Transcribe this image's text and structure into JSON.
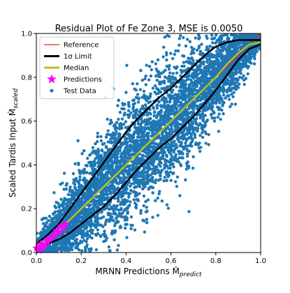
{
  "chart_data": {
    "type": "scatter",
    "title": "Residual Plot of Fe Zone 3, MSE is 0.0050",
    "xlabel": "MRNN Predictions M̂",
    "xlabel_sub": "predict",
    "ylabel": "Scaled Tardis Input M̂",
    "ylabel_sub": "scaled",
    "xlim": [
      0.0,
      1.0
    ],
    "ylim": [
      0.0,
      1.0
    ],
    "xticks": [
      "0.0",
      "0.2",
      "0.4",
      "0.6",
      "0.8",
      "1.0"
    ],
    "yticks": [
      "0.0",
      "0.2",
      "0.4",
      "0.6",
      "0.8",
      "1.0"
    ],
    "grid": false,
    "legend_position": "top-left",
    "legend": [
      {
        "label": "Reference",
        "marker": "line",
        "color": "#d62728"
      },
      {
        "label": "1σ Limit",
        "marker": "thick-line",
        "color": "#000000"
      },
      {
        "label": "Median",
        "marker": "thick-line",
        "color": "#bcbd22"
      },
      {
        "label": "Predictions",
        "marker": "star",
        "color": "#ff00ff"
      },
      {
        "label": "Test Data",
        "marker": "dot",
        "color": "#1f77b4"
      }
    ],
    "colors": {
      "reference": "#d62728",
      "limit": "#000000",
      "median": "#bcbd22",
      "predictions": "#ff00ff",
      "test_data": "#1f77b4"
    },
    "series": [
      {
        "name": "Reference",
        "kind": "line",
        "x": [
          0.0,
          1.0
        ],
        "y": [
          0.0,
          1.0
        ]
      },
      {
        "name": "Median",
        "kind": "line",
        "x": [
          0.0,
          0.05,
          0.1,
          0.15,
          0.2,
          0.25,
          0.3,
          0.35,
          0.4,
          0.45,
          0.5,
          0.55,
          0.6,
          0.65,
          0.7,
          0.75,
          0.8,
          0.85,
          0.9,
          0.95,
          1.0
        ],
        "y": [
          0.03,
          0.06,
          0.1,
          0.15,
          0.2,
          0.25,
          0.3,
          0.35,
          0.4,
          0.45,
          0.5,
          0.55,
          0.6,
          0.65,
          0.7,
          0.75,
          0.8,
          0.86,
          0.91,
          0.95,
          0.96
        ]
      },
      {
        "name": "1σ Limit (upper)",
        "kind": "line",
        "x": [
          0.0,
          0.05,
          0.1,
          0.15,
          0.2,
          0.25,
          0.3,
          0.35,
          0.4,
          0.45,
          0.5,
          0.55,
          0.6,
          0.65,
          0.7,
          0.75,
          0.8,
          0.85,
          0.9,
          0.95,
          1.0
        ],
        "y": [
          0.04,
          0.08,
          0.13,
          0.2,
          0.27,
          0.34,
          0.41,
          0.48,
          0.55,
          0.61,
          0.66,
          0.71,
          0.75,
          0.8,
          0.85,
          0.9,
          0.94,
          0.96,
          0.97,
          0.97,
          0.97
        ]
      },
      {
        "name": "1σ Limit (lower)",
        "kind": "line",
        "x": [
          0.0,
          0.05,
          0.1,
          0.15,
          0.2,
          0.25,
          0.3,
          0.35,
          0.4,
          0.45,
          0.5,
          0.55,
          0.6,
          0.65,
          0.7,
          0.75,
          0.8,
          0.85,
          0.9,
          0.95,
          1.0
        ],
        "y": [
          0.02,
          0.04,
          0.06,
          0.09,
          0.13,
          0.17,
          0.21,
          0.26,
          0.32,
          0.38,
          0.43,
          0.48,
          0.52,
          0.57,
          0.62,
          0.68,
          0.74,
          0.81,
          0.88,
          0.93,
          0.95
        ]
      },
      {
        "name": "Predictions",
        "kind": "scatter",
        "x": [
          0.0,
          0.01,
          0.02,
          0.03,
          0.04,
          0.05,
          0.06,
          0.08,
          0.09,
          0.1,
          0.11,
          0.12,
          0.13,
          0.02,
          0.05,
          0.07
        ],
        "y": [
          0.02,
          0.01,
          0.03,
          0.02,
          0.04,
          0.05,
          0.06,
          0.08,
          0.1,
          0.09,
          0.12,
          0.11,
          0.13,
          0.04,
          0.06,
          0.07
        ]
      }
    ],
    "test_data_summary": {
      "name": "Test Data",
      "kind": "scatter",
      "description_note": "",
      "point_count": 6000,
      "x_range": [
        0.0,
        1.0
      ],
      "y_range": [
        0.0,
        1.0
      ]
    }
  }
}
